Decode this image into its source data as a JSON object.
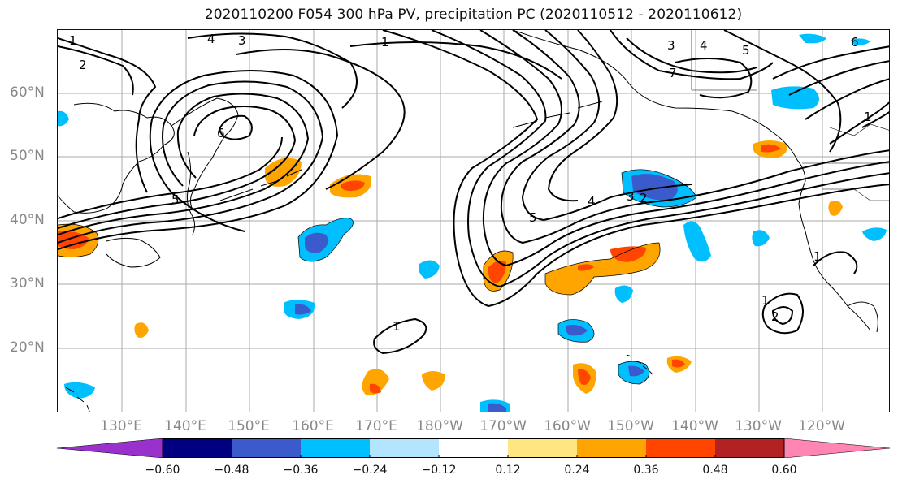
{
  "title": "2020110200 F054 300 hPa PV, precipitation PC (2020110512 - 2020110612)",
  "latitude_labels": [
    "60°N",
    "50°N",
    "40°N",
    "30°N",
    "20°N"
  ],
  "longitude_labels": [
    "130°E",
    "140°E",
    "150°E",
    "160°E",
    "170°E",
    "180°W",
    "170°W",
    "160°W",
    "150°W",
    "140°W",
    "130°W",
    "120°W"
  ],
  "contour_labels": [
    "1",
    "2",
    "3",
    "4",
    "5",
    "6",
    "7",
    "1",
    "3",
    "4",
    "5",
    "6",
    "1",
    "2",
    "3",
    "4",
    "5",
    "1",
    "1",
    "2",
    "1"
  ],
  "colorbar": {
    "ticks": [
      "−0.60",
      "−0.48",
      "−0.36",
      "−0.24",
      "−0.12",
      "0.12",
      "0.24",
      "0.36",
      "0.48",
      "0.60"
    ],
    "colors": [
      "#9932cc",
      "#000080",
      "#3b5bcc",
      "#00bfff",
      "#b3e5ff",
      "#ffffff",
      "#ffe680",
      "#ffa500",
      "#ff4500",
      "#b22222",
      "#ff85b3"
    ]
  },
  "map": {
    "region": "North Pacific",
    "projection": "equirectangular",
    "lon_range": "120°E - 110°W",
    "lat_range": "10°N - 70°N",
    "gridlines": true
  },
  "colors": {
    "gridline": "#aaaaaa",
    "contour": "#000000",
    "coast": "#000000",
    "tick_label": "#888888"
  }
}
